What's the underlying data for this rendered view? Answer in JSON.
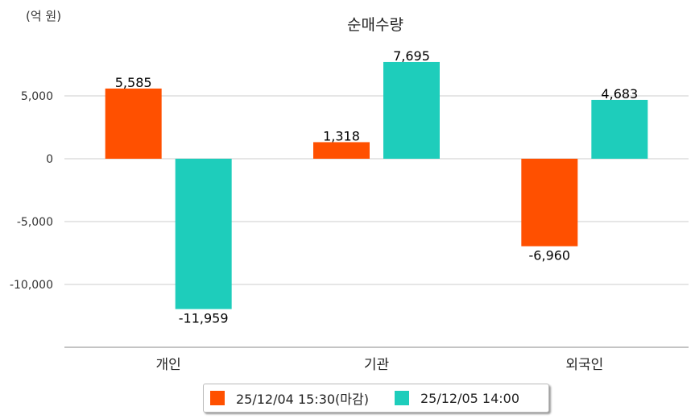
{
  "chart_data": {
    "type": "bar",
    "title": "순매수량",
    "unit_label": "(억 원)",
    "categories": [
      "개인",
      "기관",
      "외국인"
    ],
    "series": [
      {
        "name": "25/12/04 15:30(마감)",
        "color": "#FF5000",
        "values": [
          5585,
          1318,
          -6960
        ],
        "labels": [
          "5,585",
          "1,318",
          "-6,960"
        ]
      },
      {
        "name": "25/12/05 14:00",
        "color": "#1ECDBB",
        "values": [
          -11959,
          7695,
          4683
        ],
        "labels": [
          "-11,959",
          "7,695",
          "4,683"
        ]
      }
    ],
    "yticks": [
      5000,
      0,
      -5000,
      -10000
    ],
    "ytick_labels": [
      "5,000",
      "0",
      "-5,000",
      "-10,000"
    ],
    "ylim": [
      -15000,
      10000
    ],
    "grid": true,
    "legend_position": "bottom"
  }
}
